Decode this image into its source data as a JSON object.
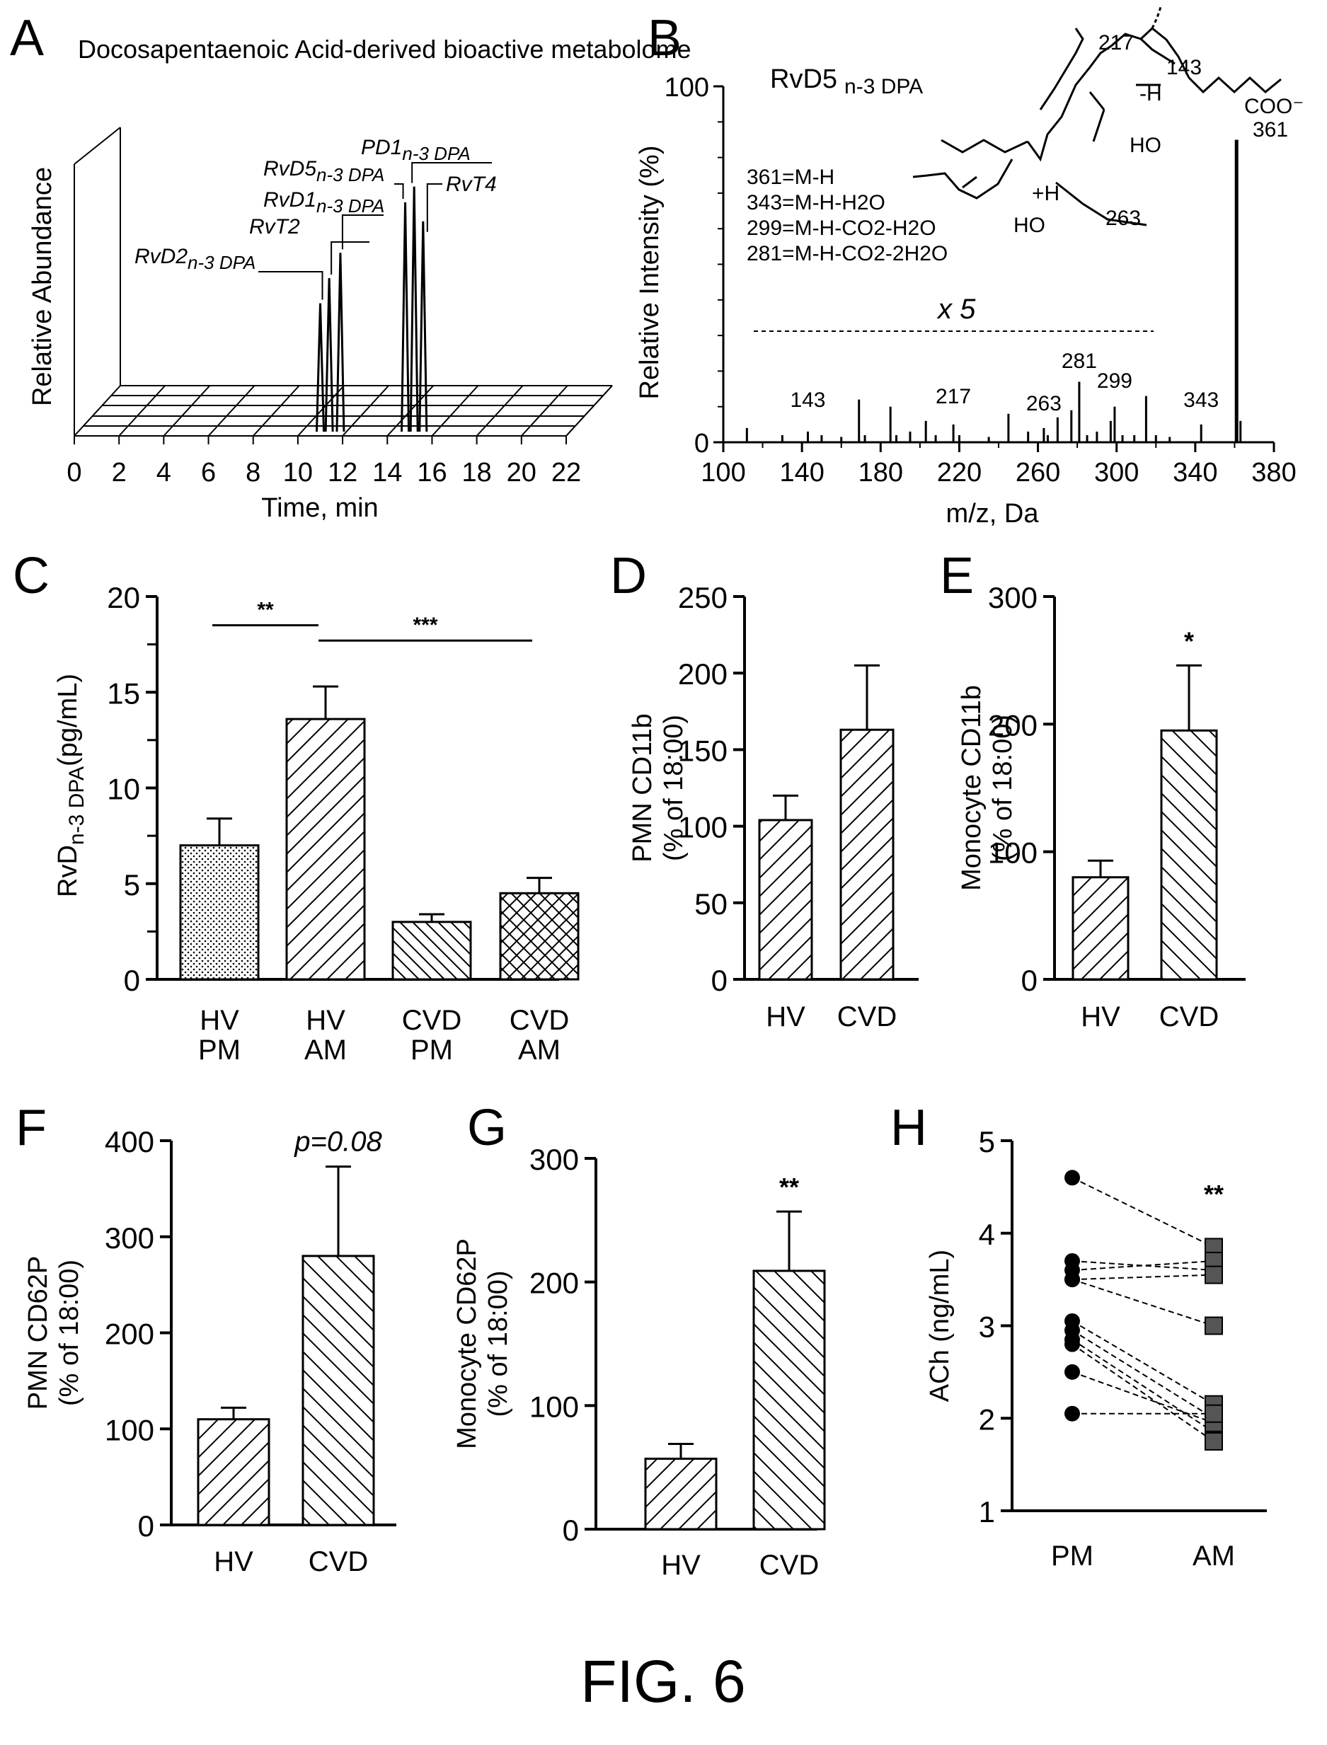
{
  "figure_title": "FIG. 6",
  "chart_data": [
    {
      "panel": "A",
      "type": "line",
      "title": "Docosapentaenoic Acid-derived bioactive metabolome",
      "xlabel": "Time, min",
      "ylabel": "Relative Abundance",
      "x_ticks": [
        "0",
        "2",
        "4",
        "6",
        "8",
        "10",
        "12",
        "14",
        "16",
        "18",
        "20",
        "22"
      ],
      "xlim": [
        0,
        22
      ],
      "peaks": [
        {
          "label": "RvD2",
          "sub": "n-3 DPA",
          "x": 11.0,
          "height": 0.42
        },
        {
          "label": "RvT2",
          "sub": "",
          "x": 11.4,
          "height": 0.5
        },
        {
          "label": "RvD1",
          "sub": "n-3 DPA",
          "x": 11.9,
          "height": 0.58
        },
        {
          "label": "RvD5",
          "sub": "n-3 DPA",
          "x": 14.8,
          "height": 0.74
        },
        {
          "label": "PD1",
          "sub": "n-3 DPA",
          "x": 15.2,
          "height": 0.79
        },
        {
          "label": "RvT4",
          "sub": "",
          "x": 15.6,
          "height": 0.68
        }
      ]
    },
    {
      "panel": "B",
      "type": "bar",
      "title": "RvD5",
      "title_sub": "n-3  DPA",
      "xlabel": "m/z, Da",
      "ylabel": "Relative Intensity (%)",
      "x_ticks": [
        "100",
        "140",
        "180",
        "220",
        "260",
        "300",
        "340",
        "380"
      ],
      "y_ticks": [
        "0",
        "100"
      ],
      "xlim": [
        100,
        380
      ],
      "ylim": [
        0,
        100
      ],
      "multiplier_label": "x 5",
      "fragment_legend": [
        "361=M-H",
        "343=M-H-H2O",
        "299=M-H-CO2-H2O",
        "281=M-H-CO2-2H2O"
      ],
      "structure_labels": [
        "217",
        "143",
        "-H",
        "COO⁻",
        "HO",
        "361",
        "+H",
        "HO",
        "263"
      ],
      "peak_labels": [
        {
          "x": 143,
          "label": "143"
        },
        {
          "x": 217,
          "label": "217"
        },
        {
          "x": 263,
          "label": "263"
        },
        {
          "x": 281,
          "label": "281"
        },
        {
          "x": 299,
          "label": "299"
        },
        {
          "x": 343,
          "label": "343"
        }
      ],
      "peaks": [
        {
          "x": 112,
          "y": 4
        },
        {
          "x": 130,
          "y": 2
        },
        {
          "x": 143,
          "y": 3
        },
        {
          "x": 150,
          "y": 2
        },
        {
          "x": 160,
          "y": 1.5
        },
        {
          "x": 169,
          "y": 12
        },
        {
          "x": 172,
          "y": 2
        },
        {
          "x": 185,
          "y": 10
        },
        {
          "x": 188,
          "y": 2
        },
        {
          "x": 195,
          "y": 3
        },
        {
          "x": 203,
          "y": 6
        },
        {
          "x": 208,
          "y": 2
        },
        {
          "x": 217,
          "y": 5
        },
        {
          "x": 220,
          "y": 2
        },
        {
          "x": 235,
          "y": 1.5
        },
        {
          "x": 245,
          "y": 8
        },
        {
          "x": 255,
          "y": 3
        },
        {
          "x": 263,
          "y": 4
        },
        {
          "x": 265,
          "y": 2
        },
        {
          "x": 270,
          "y": 7
        },
        {
          "x": 277,
          "y": 9
        },
        {
          "x": 281,
          "y": 17
        },
        {
          "x": 285,
          "y": 2
        },
        {
          "x": 290,
          "y": 3
        },
        {
          "x": 297,
          "y": 6
        },
        {
          "x": 299,
          "y": 10
        },
        {
          "x": 303,
          "y": 2
        },
        {
          "x": 309,
          "y": 2
        },
        {
          "x": 315,
          "y": 13
        },
        {
          "x": 320,
          "y": 2
        },
        {
          "x": 327,
          "y": 1.5
        },
        {
          "x": 343,
          "y": 5
        },
        {
          "x": 361,
          "y": 85
        },
        {
          "x": 363,
          "y": 6
        }
      ]
    },
    {
      "panel": "C",
      "type": "bar",
      "ylabel_main": "RvD",
      "ylabel_sub": "n-3  DPA",
      "ylabel_unit": "(pg/mL)",
      "ylim": [
        0,
        20
      ],
      "y_ticks": [
        "0",
        "5",
        "10",
        "15",
        "20"
      ],
      "categories": [
        [
          "HV",
          "PM"
        ],
        [
          "HV",
          "AM"
        ],
        [
          "CVD",
          "PM"
        ],
        [
          "CVD",
          "AM"
        ]
      ],
      "values": [
        7.0,
        13.6,
        3.0,
        4.5
      ],
      "errors": [
        1.4,
        1.7,
        0.4,
        0.8
      ],
      "patterns": [
        "dots",
        "diag",
        "diag-dense",
        "cross"
      ],
      "significance": [
        {
          "from": 0,
          "to": 1,
          "y": 18.5,
          "label": "**"
        },
        {
          "from": 1,
          "to": 3,
          "y": 17.7,
          "label": "***"
        }
      ]
    },
    {
      "panel": "D",
      "type": "bar",
      "ylabel": [
        "PMN CD11b",
        "(% of 18:00)"
      ],
      "ylim": [
        0,
        250
      ],
      "y_ticks": [
        "0",
        "50",
        "100",
        "150",
        "200",
        "250"
      ],
      "categories": [
        "HV",
        "CVD"
      ],
      "values": [
        104,
        163
      ],
      "errors": [
        16,
        42
      ],
      "patterns": [
        "diag",
        "diag"
      ],
      "annotation": ""
    },
    {
      "panel": "E",
      "type": "bar",
      "ylabel": [
        "Monocyte CD11b",
        "(% of 18:00)"
      ],
      "ylim": [
        0,
        300
      ],
      "y_ticks": [
        "0",
        "100",
        "200",
        "300"
      ],
      "categories": [
        "HV",
        "CVD"
      ],
      "values": [
        80,
        195
      ],
      "errors": [
        13,
        51
      ],
      "patterns": [
        "diag",
        "diag-rev"
      ],
      "annotation": "*"
    },
    {
      "panel": "F",
      "type": "bar",
      "ylabel": [
        "PMN CD62P",
        "(% of 18:00)"
      ],
      "ylim": [
        0,
        400
      ],
      "y_ticks": [
        "0",
        "100",
        "200",
        "300",
        "400"
      ],
      "categories": [
        "HV",
        "CVD"
      ],
      "values": [
        110,
        280
      ],
      "errors": [
        12,
        93
      ],
      "patterns": [
        "diag",
        "diag-rev"
      ],
      "annotation": "p=0.08"
    },
    {
      "panel": "G",
      "type": "bar",
      "ylabel": [
        "Monocyte CD62P",
        "(% of 18:00)"
      ],
      "ylim": [
        0,
        300
      ],
      "y_ticks": [
        "0",
        "100",
        "200",
        "300"
      ],
      "categories": [
        "HV",
        "CVD"
      ],
      "values": [
        57,
        209
      ],
      "errors": [
        12,
        48
      ],
      "patterns": [
        "diag",
        "diag-rev"
      ],
      "annotation": "**"
    },
    {
      "panel": "H",
      "type": "scatter",
      "ylabel": "ACh (ng/mL)",
      "ylim": [
        1,
        5
      ],
      "y_ticks": [
        "1",
        "2",
        "3",
        "4",
        "5"
      ],
      "categories": [
        "PM",
        "AM"
      ],
      "pairs": [
        [
          4.6,
          3.85
        ],
        [
          3.7,
          3.6
        ],
        [
          3.6,
          3.7
        ],
        [
          3.5,
          3.55
        ],
        [
          3.5,
          3.0
        ],
        [
          3.05,
          2.15
        ],
        [
          2.95,
          2.0
        ],
        [
          2.85,
          1.85
        ],
        [
          2.8,
          1.75
        ],
        [
          2.5,
          1.95
        ],
        [
          2.05,
          2.05
        ]
      ],
      "annotation": "**"
    }
  ]
}
